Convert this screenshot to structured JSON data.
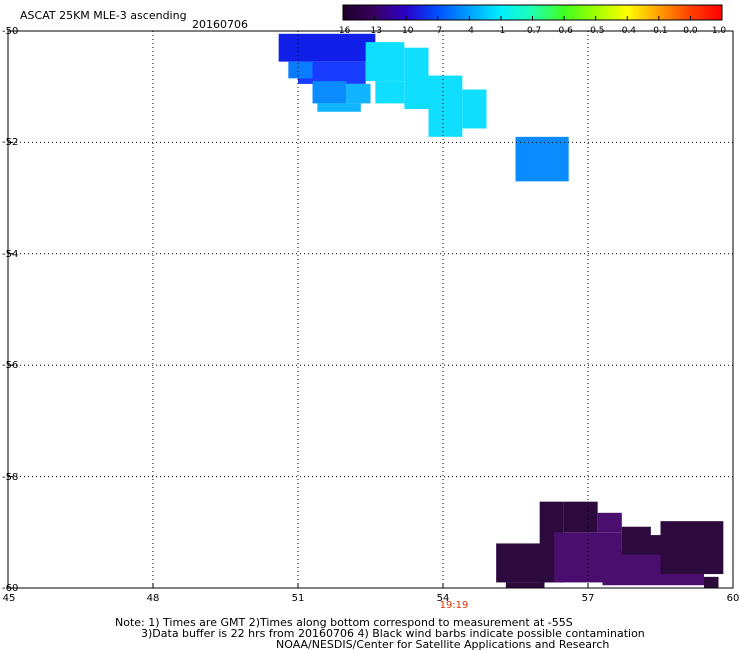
{
  "header": {
    "title": "ASCAT 25KM MLE-3 ascending",
    "date": "20160706"
  },
  "colorbar": {
    "labels": [
      "-16",
      "-13",
      "-10",
      "-7",
      "-4",
      "-1",
      "-0.7",
      "-0.6",
      "-0.5",
      "-0.4",
      "-0.1",
      "0.0",
      "1.0"
    ],
    "colors": [
      "#1a0026",
      "#3a0062",
      "#2a00c8",
      "#0050ff",
      "#00a0ff",
      "#00f0ff",
      "#20ffb0",
      "#40ff20",
      "#a0ff00",
      "#ffff00",
      "#ffa000",
      "#ff4000",
      "#ff0000"
    ]
  },
  "axes": {
    "lat_labels": [
      "-50",
      "-52",
      "-54",
      "-56",
      "-58",
      "-60"
    ],
    "lon_labels": [
      "45",
      "48",
      "51",
      "54",
      "57",
      "60"
    ],
    "lat_range": [
      -60,
      -50
    ],
    "lon_range": [
      45,
      60
    ],
    "grid": true,
    "time_label": "19:19",
    "time_label_color": "#e03000"
  },
  "swath_cells": [
    {
      "lon": [
        50.6,
        52.6
      ],
      "lat": [
        -50.05,
        -50.55
      ],
      "value": -10
    },
    {
      "lon": [
        51.0,
        52.4
      ],
      "lat": [
        -50.55,
        -50.95
      ],
      "value": -7
    },
    {
      "lon": [
        50.8,
        51.3
      ],
      "lat": [
        -50.55,
        -50.85
      ],
      "value": -5
    },
    {
      "lon": [
        51.3,
        52.0
      ],
      "lat": [
        -50.9,
        -51.3
      ],
      "value": -4
    },
    {
      "lon": [
        52.0,
        52.5
      ],
      "lat": [
        -50.95,
        -51.3
      ],
      "value": -3
    },
    {
      "lon": [
        51.4,
        52.3
      ],
      "lat": [
        -51.3,
        -51.45
      ],
      "value": -3
    },
    {
      "lon": [
        52.4,
        53.2
      ],
      "lat": [
        -50.2,
        -50.9
      ],
      "value": -1
    },
    {
      "lon": [
        52.6,
        53.2
      ],
      "lat": [
        -50.9,
        -51.3
      ],
      "value": -1
    },
    {
      "lon": [
        53.7,
        54.4
      ],
      "lat": [
        -50.8,
        -51.9
      ],
      "value": -1
    },
    {
      "lon": [
        54.4,
        54.9
      ],
      "lat": [
        -51.05,
        -51.75
      ],
      "value": -1
    },
    {
      "lon": [
        53.2,
        53.7
      ],
      "lat": [
        -50.3,
        -51.4
      ],
      "value": -1
    },
    {
      "lon": [
        55.5,
        56.6
      ],
      "lat": [
        -51.9,
        -52.7
      ],
      "value": -4
    },
    {
      "lon": [
        55.1,
        56.3
      ],
      "lat": [
        -59.2,
        -59.9
      ],
      "value": -16
    },
    {
      "lon": [
        55.3,
        56.1
      ],
      "lat": [
        -59.9,
        -60.0
      ],
      "value": -16
    },
    {
      "lon": [
        56.0,
        56.5
      ],
      "lat": [
        -58.45,
        -59.9
      ],
      "value": -16
    },
    {
      "lon": [
        56.5,
        57.2
      ],
      "lat": [
        -58.45,
        -59.0
      ],
      "value": -16
    },
    {
      "lon": [
        56.3,
        57.7
      ],
      "lat": [
        -59.0,
        -59.9
      ],
      "value": -14
    },
    {
      "lon": [
        57.2,
        57.7
      ],
      "lat": [
        -58.65,
        -59.0
      ],
      "value": -14
    },
    {
      "lon": [
        57.3,
        59.4
      ],
      "lat": [
        -59.3,
        -59.95
      ],
      "value": -14
    },
    {
      "lon": [
        57.7,
        59.7
      ],
      "lat": [
        -59.05,
        -59.4
      ],
      "value": -15
    },
    {
      "lon": [
        58.5,
        59.8
      ],
      "lat": [
        -58.8,
        -59.75
      ],
      "value": -15
    },
    {
      "lon": [
        57.7,
        58.3
      ],
      "lat": [
        -58.9,
        -59.2
      ],
      "value": -15
    },
    {
      "lon": [
        59.4,
        59.7
      ],
      "lat": [
        -59.8,
        -60.0
      ],
      "value": -16
    }
  ],
  "notes": {
    "line1": "Note: 1) Times are GMT 2)Times along bottom correspond to measurement at -55S",
    "line2": "3)Data buffer is 22 hrs from 20160706 4) Black wind barbs indicate possible contamination",
    "line3": "NOAA/NESDIS/Center for Satellite Applications and Research"
  }
}
